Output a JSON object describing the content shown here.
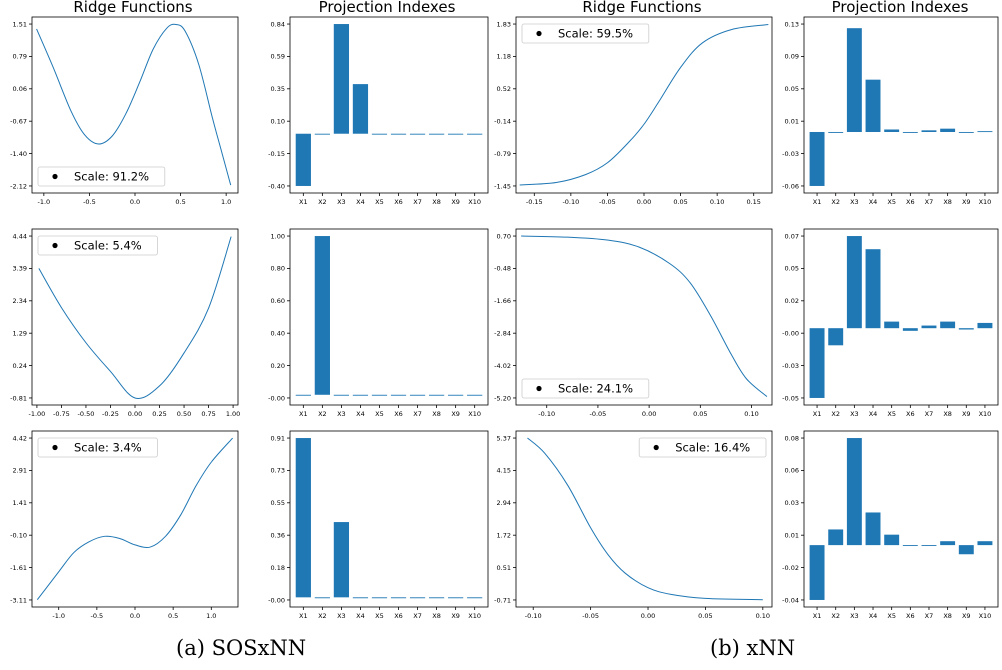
{
  "column_titles": [
    "Ridge Functions",
    "Projection Indexes",
    "Ridge Functions",
    "Projection Indexes"
  ],
  "captions": [
    "(a) SOSxNN",
    "(b) xNN"
  ],
  "colors": {
    "series": "#1f77b4",
    "background": "#ffffff",
    "axis": "#000000"
  },
  "chart_data": [
    {
      "id": "a-ridge-1",
      "type": "line",
      "legend": "Scale: 91.2%",
      "legend_loc": "lower-left",
      "xlim": [
        -1.13,
        1.13
      ],
      "ylim": [
        -2.12,
        1.51
      ],
      "xticks": [
        "-1.0",
        "-0.5",
        "0.0",
        "0.5",
        "1.0"
      ],
      "yticks": [
        "-2.12",
        "-1.40",
        "-0.67",
        "0.06",
        "0.79",
        "1.51"
      ],
      "x": [
        -1.08,
        -0.9,
        -0.7,
        -0.55,
        -0.4,
        -0.25,
        -0.1,
        0.05,
        0.2,
        0.35,
        0.45,
        0.55,
        0.7,
        0.85,
        0.95,
        1.05
      ],
      "y": [
        1.4,
        0.55,
        -0.45,
        -0.98,
        -1.18,
        -1.0,
        -0.5,
        0.2,
        0.95,
        1.42,
        1.5,
        1.35,
        0.6,
        -0.6,
        -1.35,
        -2.1
      ]
    },
    {
      "id": "a-proj-1",
      "type": "bar",
      "categories": [
        "X1",
        "X2",
        "X3",
        "X4",
        "X5",
        "X6",
        "X7",
        "X8",
        "X9",
        "X10"
      ],
      "values": [
        -0.4,
        0.0,
        0.84,
        0.38,
        0.0,
        0.0,
        0.0,
        0.0,
        0.0,
        0.0
      ],
      "ylim": [
        -0.4,
        0.84
      ],
      "yticks": [
        "-0.40",
        "-0.15",
        "0.10",
        "0.35",
        "0.59",
        "0.84"
      ]
    },
    {
      "id": "b-ridge-1",
      "type": "line",
      "legend": "Scale: 59.5%",
      "legend_loc": "upper-left",
      "xlim": [
        -0.175,
        0.175
      ],
      "ylim": [
        -1.45,
        1.83
      ],
      "xticks": [
        "-0.15",
        "-0.10",
        "-0.05",
        "0.00",
        "0.05",
        "0.10",
        "0.15"
      ],
      "yticks": [
        "-1.45",
        "-0.79",
        "-0.14",
        "0.52",
        "1.18",
        "1.83"
      ],
      "x": [
        -0.17,
        -0.12,
        -0.08,
        -0.05,
        -0.02,
        0.0,
        0.02,
        0.05,
        0.08,
        0.12,
        0.17
      ],
      "y": [
        -1.43,
        -1.38,
        -1.22,
        -0.98,
        -0.55,
        -0.2,
        0.25,
        0.95,
        1.45,
        1.72,
        1.82
      ]
    },
    {
      "id": "b-proj-1",
      "type": "bar",
      "categories": [
        "X1",
        "X2",
        "X3",
        "X4",
        "X5",
        "X6",
        "X7",
        "X8",
        "X9",
        "X10"
      ],
      "values": [
        -0.065,
        0.0,
        0.125,
        0.063,
        0.003,
        0.0,
        0.002,
        0.004,
        -0.001,
        0.001
      ],
      "ylim": [
        -0.065,
        0.13
      ],
      "yticks": [
        "-0.06",
        "-0.03",
        "0.01",
        "0.05",
        "0.09",
        "0.13"
      ]
    },
    {
      "id": "a-ridge-2",
      "type": "line",
      "legend": "Scale: 5.4%",
      "legend_loc": "upper-left",
      "xlim": [
        -1.05,
        1.05
      ],
      "ylim": [
        -0.81,
        4.44
      ],
      "xticks": [
        "-1.00",
        "-0.75",
        "-0.50",
        "-0.25",
        "0.00",
        "0.25",
        "0.50",
        "0.75",
        "1.00"
      ],
      "yticks": [
        "-0.81",
        "0.24",
        "1.29",
        "2.34",
        "3.39",
        "4.44"
      ],
      "x": [
        -0.98,
        -0.75,
        -0.5,
        -0.25,
        0.0,
        0.25,
        0.5,
        0.75,
        0.98
      ],
      "y": [
        3.39,
        2.12,
        0.98,
        0.05,
        -0.81,
        -0.42,
        0.65,
        2.1,
        4.42
      ]
    },
    {
      "id": "a-proj-2",
      "type": "bar",
      "categories": [
        "X1",
        "X2",
        "X3",
        "X4",
        "X5",
        "X6",
        "X7",
        "X8",
        "X9",
        "X10"
      ],
      "values": [
        0.0,
        1.0,
        0.0,
        0.0,
        0.0,
        0.0,
        0.0,
        0.0,
        0.0,
        0.0
      ],
      "ylim": [
        -0.02,
        1.0
      ],
      "yticks": [
        "-0.00",
        "0.20",
        "0.40",
        "0.60",
        "0.80",
        "1.00"
      ]
    },
    {
      "id": "b-ridge-2",
      "type": "line",
      "legend": "Scale: 24.1%",
      "legend_loc": "lower-left",
      "xlim": [
        -0.13,
        0.12
      ],
      "ylim": [
        -5.2,
        0.7
      ],
      "xticks": [
        "-0.10",
        "-0.05",
        "0.00",
        "0.05",
        "0.10"
      ],
      "yticks": [
        "-5.20",
        "-4.02",
        "-2.84",
        "-1.66",
        "-0.48",
        "0.70"
      ],
      "x": [
        -0.125,
        -0.08,
        -0.04,
        -0.01,
        0.02,
        0.04,
        0.06,
        0.08,
        0.095,
        0.115
      ],
      "y": [
        0.7,
        0.66,
        0.55,
        0.3,
        -0.3,
        -1.0,
        -2.2,
        -3.6,
        -4.5,
        -5.15
      ]
    },
    {
      "id": "b-proj-2",
      "type": "bar",
      "categories": [
        "X1",
        "X2",
        "X3",
        "X4",
        "X5",
        "X6",
        "X7",
        "X8",
        "X9",
        "X10"
      ],
      "values": [
        -0.053,
        -0.013,
        0.07,
        0.06,
        0.005,
        -0.002,
        0.002,
        0.005,
        -0.001,
        0.004
      ],
      "ylim": [
        -0.053,
        0.07
      ],
      "yticks": [
        "-0.05",
        "-0.03",
        "-0.00",
        "0.02",
        "0.05",
        "0.07"
      ]
    },
    {
      "id": "a-ridge-3",
      "type": "line",
      "legend": "Scale: 3.4%",
      "legend_loc": "upper-left",
      "xlim": [
        -1.35,
        1.35
      ],
      "ylim": [
        -3.11,
        4.42
      ],
      "xticks": [
        "-1.0",
        "-0.5",
        "0.0",
        "0.5",
        "1.0"
      ],
      "yticks": [
        "-3.11",
        "-1.61",
        "-0.10",
        "1.41",
        "2.91",
        "4.42"
      ],
      "x": [
        -1.28,
        -1.0,
        -0.8,
        -0.6,
        -0.4,
        -0.2,
        0.0,
        0.2,
        0.4,
        0.6,
        0.8,
        1.0,
        1.28
      ],
      "y": [
        -3.1,
        -1.8,
        -0.9,
        -0.4,
        -0.15,
        -0.25,
        -0.55,
        -0.65,
        -0.15,
        0.85,
        2.2,
        3.3,
        4.42
      ]
    },
    {
      "id": "a-proj-3",
      "type": "bar",
      "categories": [
        "X1",
        "X2",
        "X3",
        "X4",
        "X5",
        "X6",
        "X7",
        "X8",
        "X9",
        "X10"
      ],
      "values": [
        0.91,
        0.0,
        0.43,
        0.0,
        0.0,
        0.0,
        0.0,
        0.0,
        0.0,
        0.0
      ],
      "ylim": [
        -0.015,
        0.91
      ],
      "yticks": [
        "-0.00",
        "0.18",
        "0.36",
        "0.55",
        "0.73",
        "0.91"
      ]
    },
    {
      "id": "b-ridge-3",
      "type": "line",
      "legend": "Scale: 16.4%",
      "legend_loc": "upper-right",
      "xlim": [
        -0.115,
        0.108
      ],
      "ylim": [
        -0.71,
        5.37
      ],
      "xticks": [
        "-0.10",
        "-0.05",
        "0.00",
        "0.05",
        "0.10"
      ],
      "yticks": [
        "-0.71",
        "0.51",
        "1.72",
        "2.94",
        "4.15",
        "5.37"
      ],
      "x": [
        -0.105,
        -0.09,
        -0.07,
        -0.05,
        -0.035,
        -0.02,
        0.0,
        0.02,
        0.05,
        0.1
      ],
      "y": [
        5.37,
        4.8,
        3.6,
        2.0,
        1.0,
        0.3,
        -0.25,
        -0.5,
        -0.65,
        -0.7
      ]
    },
    {
      "id": "b-proj-3",
      "type": "bar",
      "categories": [
        "X1",
        "X2",
        "X3",
        "X4",
        "X5",
        "X6",
        "X7",
        "X8",
        "X9",
        "X10"
      ],
      "values": [
        -0.042,
        0.012,
        0.082,
        0.025,
        0.008,
        0.0,
        0.0,
        0.003,
        -0.007,
        0.003
      ],
      "ylim": [
        -0.042,
        0.082
      ],
      "yticks": [
        "-0.04",
        "-0.02",
        "0.01",
        "0.03",
        "0.06",
        "0.08"
      ]
    }
  ]
}
